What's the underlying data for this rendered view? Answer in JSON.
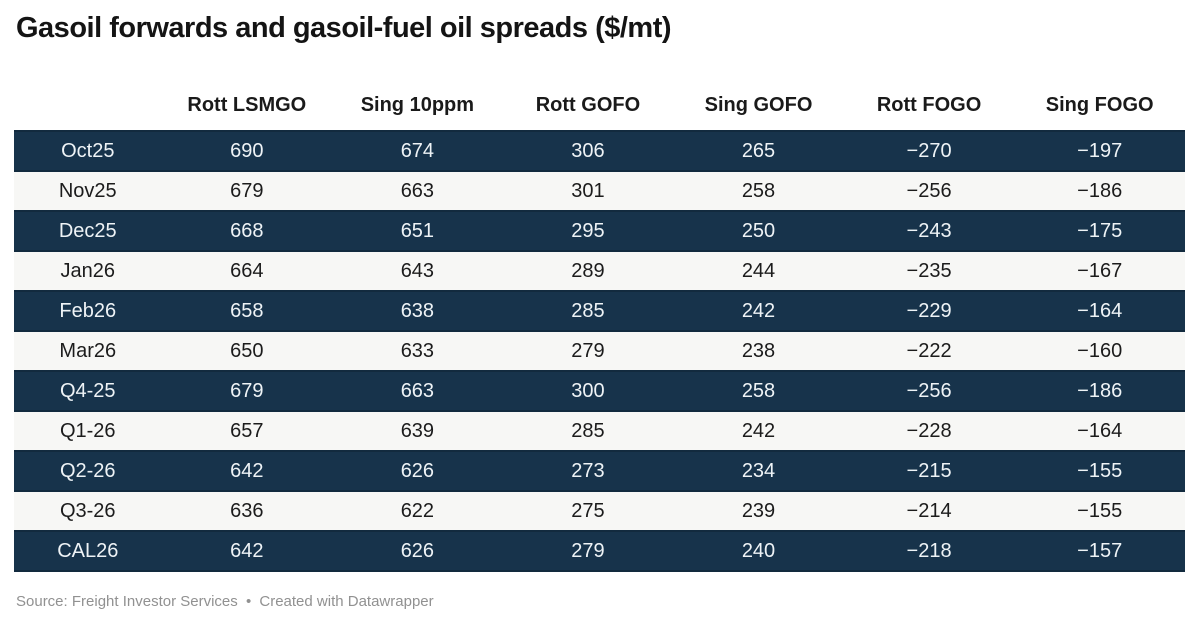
{
  "chart_data": {
    "type": "table",
    "title": "Gasoil forwards and gasoil-fuel oil spreads ($/mt)",
    "columns": [
      "",
      "Rott LSMGO",
      "Sing 10ppm",
      "Rott GOFO",
      "Sing GOFO",
      "Rott FOGO",
      "Sing FOGO"
    ],
    "rows": [
      [
        "Oct25",
        690,
        674,
        306,
        265,
        -270,
        -197
      ],
      [
        "Nov25",
        679,
        663,
        301,
        258,
        -256,
        -186
      ],
      [
        "Dec25",
        668,
        651,
        295,
        250,
        -243,
        -175
      ],
      [
        "Jan26",
        664,
        643,
        289,
        244,
        -235,
        -167
      ],
      [
        "Feb26",
        658,
        638,
        285,
        242,
        -229,
        -164
      ],
      [
        "Mar26",
        650,
        633,
        279,
        238,
        -222,
        -160
      ],
      [
        "Q4-25",
        679,
        663,
        300,
        258,
        -256,
        -186
      ],
      [
        "Q1-26",
        657,
        639,
        285,
        242,
        -228,
        -164
      ],
      [
        "Q2-26",
        642,
        626,
        273,
        234,
        -215,
        -155
      ],
      [
        "Q3-26",
        636,
        622,
        275,
        239,
        -214,
        -155
      ],
      [
        "CAL26",
        642,
        626,
        279,
        240,
        -218,
        -157
      ]
    ],
    "layout": {
      "striping": "alternating rows starting dark",
      "cell_align": "center",
      "negative_sign_glyph": "−"
    }
  },
  "footer": {
    "source": "Source: Freight Investor Services",
    "separator": "•",
    "attribution": "Created with Datawrapper"
  },
  "colors": {
    "dark_row_bg": "#17334b",
    "dark_row_border": "#122a3e",
    "dark_row_text": "#eef3f6",
    "light_row_bg": "#f7f7f5",
    "light_row_text": "#1c1c1c",
    "title_text": "#141414",
    "footer_text": "#919191"
  }
}
